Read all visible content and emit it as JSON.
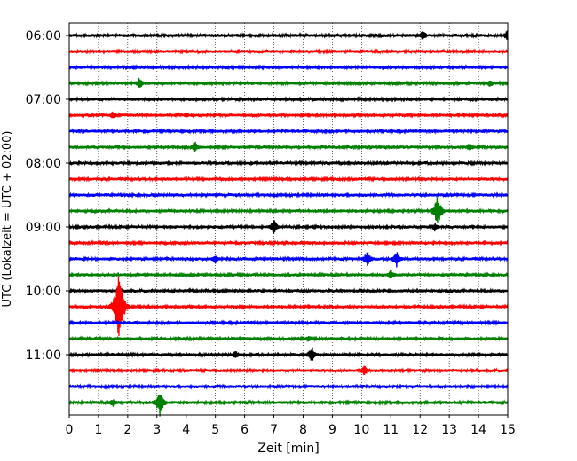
{
  "chart_data": {
    "type": "line",
    "title": "",
    "xlabel": "Zeit  [min]",
    "ylabel": "UTC (Lokalzeit = UTC + 02:00)",
    "xlim": [
      0,
      15
    ],
    "x_ticks": [
      "0",
      "1",
      "2",
      "3",
      "4",
      "5",
      "6",
      "7",
      "8",
      "9",
      "10",
      "11",
      "12",
      "13",
      "14",
      "15"
    ],
    "y_ticks": [
      "06:00",
      "07:00",
      "08:00",
      "09:00",
      "10:00",
      "11:00"
    ],
    "grid": "vertical-dotted",
    "traces_per_hour": 4,
    "trace_minutes": 15,
    "colors": [
      "#000000",
      "#ff0000",
      "#0000ff",
      "#008000"
    ],
    "series": [
      {
        "start": "06:00",
        "events": [
          {
            "minute": 12.1,
            "amp": 0.35
          },
          {
            "minute": 15.0,
            "amp": 0.4
          }
        ]
      },
      {
        "start": "06:15",
        "events": []
      },
      {
        "start": "06:30",
        "events": []
      },
      {
        "start": "06:45",
        "events": [
          {
            "minute": 2.4,
            "amp": 0.4
          },
          {
            "minute": 14.4,
            "amp": 0.3
          }
        ]
      },
      {
        "start": "07:00",
        "events": []
      },
      {
        "start": "07:15",
        "events": [
          {
            "minute": 1.5,
            "amp": 0.3
          },
          {
            "minute": 4.0,
            "amp": 0.2
          }
        ]
      },
      {
        "start": "07:30",
        "events": []
      },
      {
        "start": "07:45",
        "events": [
          {
            "minute": 4.3,
            "amp": 0.4
          },
          {
            "minute": 13.7,
            "amp": 0.3
          }
        ]
      },
      {
        "start": "08:00",
        "events": []
      },
      {
        "start": "08:15",
        "events": []
      },
      {
        "start": "08:30",
        "events": []
      },
      {
        "start": "08:45",
        "events": [
          {
            "minute": 12.6,
            "amp": 1.0
          }
        ]
      },
      {
        "start": "09:00",
        "events": [
          {
            "minute": 7.0,
            "amp": 0.5
          },
          {
            "minute": 12.5,
            "amp": 0.3
          }
        ]
      },
      {
        "start": "09:15",
        "events": [
          {
            "minute": 14.2,
            "amp": 0.2
          }
        ]
      },
      {
        "start": "09:30",
        "events": [
          {
            "minute": 5.0,
            "amp": 0.35
          },
          {
            "minute": 10.2,
            "amp": 0.55
          },
          {
            "minute": 11.2,
            "amp": 0.55
          }
        ]
      },
      {
        "start": "09:45",
        "events": [
          {
            "minute": 11.0,
            "amp": 0.35
          }
        ]
      },
      {
        "start": "10:00",
        "events": []
      },
      {
        "start": "10:15",
        "events": [
          {
            "minute": 1.7,
            "amp": 2.5
          }
        ]
      },
      {
        "start": "10:30",
        "events": []
      },
      {
        "start": "10:45",
        "events": [
          {
            "minute": 8.2,
            "amp": 0.25
          }
        ]
      },
      {
        "start": "11:00",
        "events": [
          {
            "minute": 5.7,
            "amp": 0.3
          },
          {
            "minute": 8.3,
            "amp": 0.55
          },
          {
            "minute": 14.0,
            "amp": 0.2
          }
        ]
      },
      {
        "start": "11:15",
        "events": [
          {
            "minute": 10.1,
            "amp": 0.35
          }
        ]
      },
      {
        "start": "11:30",
        "events": []
      },
      {
        "start": "11:45",
        "events": [
          {
            "minute": 1.5,
            "amp": 0.3
          },
          {
            "minute": 3.1,
            "amp": 0.9
          }
        ]
      }
    ]
  }
}
